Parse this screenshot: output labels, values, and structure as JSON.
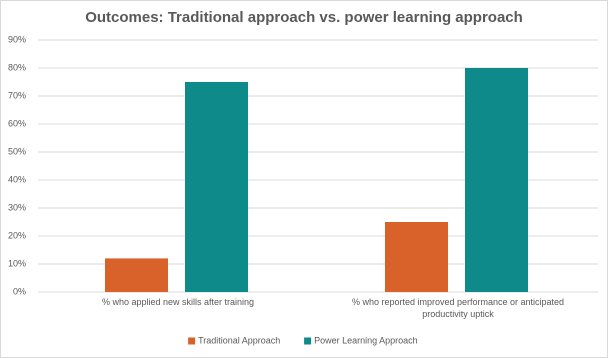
{
  "chart_data": {
    "type": "bar",
    "title": "Outcomes: Traditional approach vs. power learning approach",
    "categories": [
      "% who applied new skills after training",
      "% who reported improved performance or anticipated productivity uptick"
    ],
    "series": [
      {
        "name": "Traditional Approach",
        "color": "#d9622b",
        "values": [
          12,
          25
        ]
      },
      {
        "name": "Power Learning Approach",
        "color": "#0e8a8a",
        "values": [
          75,
          80
        ]
      }
    ],
    "ylim": [
      0,
      90
    ],
    "yticks": [
      {
        "value": 0,
        "label": "0%"
      },
      {
        "value": 10,
        "label": "10%"
      },
      {
        "value": 20,
        "label": "20%"
      },
      {
        "value": 30,
        "label": "30%"
      },
      {
        "value": 40,
        "label": "40%"
      },
      {
        "value": 50,
        "label": "50%"
      },
      {
        "value": 60,
        "label": "60%"
      },
      {
        "value": 70,
        "label": "70%"
      },
      {
        "value": 80,
        "label": "80%"
      },
      {
        "value": 90,
        "label": "90%"
      }
    ],
    "grid": true,
    "legend": "bottom"
  }
}
